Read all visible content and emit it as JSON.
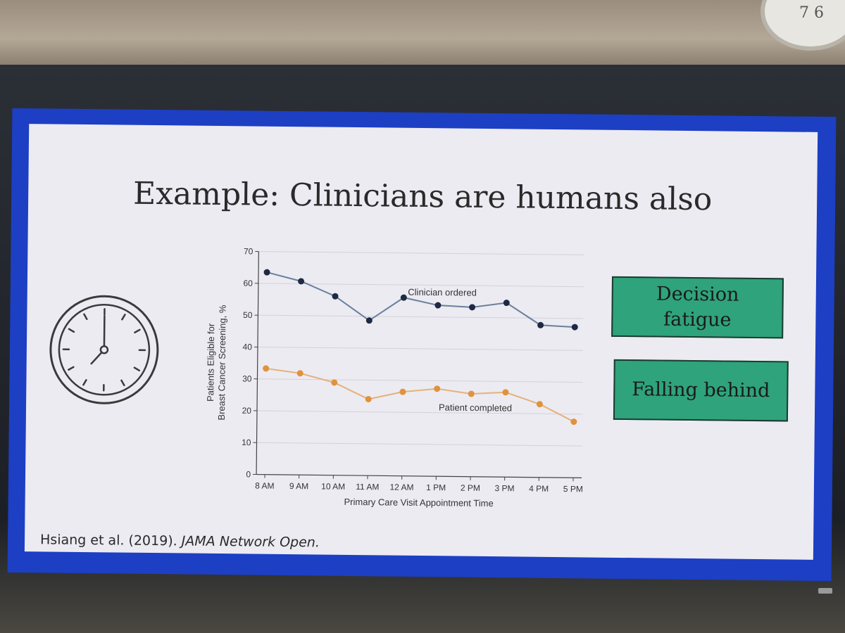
{
  "slide": {
    "title": "Example: Clinicians are humans also",
    "citation_authors": "Hsiang et al. (2019). ",
    "citation_journal": "JAMA Network Open.",
    "boxes": {
      "decision_fatigue": "Decision\nfatigue",
      "falling_behind": "Falling behind"
    }
  },
  "wall_clock_digits": "7 6",
  "colors": {
    "slide_border": "#1d3fc4",
    "box_fill": "#2fa37b",
    "clinician_series": "#6a7f9c",
    "clinician_marker": "#1e2a44",
    "patient_series": "#e6b17a",
    "patient_marker": "#e0923d"
  },
  "icons": [
    "clock-icon"
  ],
  "chart_data": {
    "type": "line",
    "categories": [
      "8 AM",
      "9 AM",
      "10 AM",
      "11 AM",
      "12 AM",
      "1 PM",
      "2 PM",
      "3 PM",
      "4 PM",
      "5 PM"
    ],
    "series": [
      {
        "name": "Clinician ordered",
        "values": [
          63.5,
          60.8,
          56.2,
          48.7,
          56.0,
          53.7,
          53.2,
          54.7,
          47.8,
          47.3
        ]
      },
      {
        "name": "Patient completed",
        "values": [
          33.3,
          31.9,
          29.1,
          24.0,
          26.4,
          27.5,
          26.0,
          26.6,
          23.0,
          17.6
        ]
      }
    ],
    "xlabel": "Primary Care Visit Appointment Time",
    "ylabel_line1": "Patients Eligible for",
    "ylabel_line2": "Breast Cancer Screening, %",
    "ylim": [
      0,
      70
    ],
    "yticks": [
      0,
      10,
      20,
      30,
      40,
      50,
      60,
      70
    ],
    "grid": true
  }
}
